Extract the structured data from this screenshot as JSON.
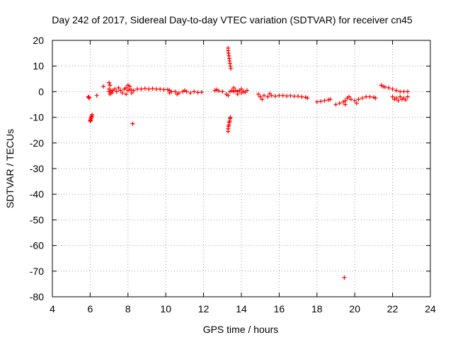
{
  "chart_data": {
    "type": "scatter",
    "title": "Day 242 of 2017, Sidereal Day-to-day VTEC variation (SDTVAR) for receiver cn45",
    "xlabel": "GPS time / hours",
    "ylabel": "SDTVAR / TECUs",
    "xlim": [
      4,
      24
    ],
    "ylim": [
      -80,
      20
    ],
    "xticks": [
      4,
      6,
      8,
      10,
      12,
      14,
      16,
      18,
      20,
      22,
      24
    ],
    "yticks": [
      -80,
      -70,
      -60,
      -50,
      -40,
      -30,
      -20,
      -10,
      0,
      10,
      20
    ],
    "xtick_labels": [
      "4",
      "6",
      "8",
      "10",
      "12",
      "14",
      "16",
      "18",
      "20",
      "22",
      "24"
    ],
    "ytick_labels": [
      "-80",
      "-70",
      "-60",
      "-50",
      "-40",
      "-30",
      "-20",
      "-10",
      "0",
      "10",
      "20"
    ],
    "grid": true,
    "marker": "+",
    "series_color": "#ff0000",
    "series": [
      {
        "name": "SDTVAR",
        "points": [
          [
            5.9,
            -2.0
          ],
          [
            5.95,
            -2.5
          ],
          [
            5.93,
            -2.2
          ],
          [
            6.0,
            -11.5
          ],
          [
            6.02,
            -11.0
          ],
          [
            6.04,
            -10.5
          ],
          [
            6.06,
            -10.0
          ],
          [
            6.08,
            -9.5
          ],
          [
            6.1,
            -9.0
          ],
          [
            6.03,
            -11.2
          ],
          [
            6.07,
            -9.8
          ],
          [
            6.35,
            -1.5
          ],
          [
            6.7,
            2.0
          ],
          [
            7.0,
            3.5
          ],
          [
            7.05,
            2.5
          ],
          [
            7.0,
            1.0
          ],
          [
            7.0,
            0.0
          ],
          [
            7.05,
            -1.0
          ],
          [
            7.1,
            0.5
          ],
          [
            7.15,
            -0.5
          ],
          [
            7.2,
            0.5
          ],
          [
            7.3,
            1.0
          ],
          [
            7.4,
            0.0
          ],
          [
            7.5,
            1.5
          ],
          [
            7.6,
            0.5
          ],
          [
            7.7,
            -0.5
          ],
          [
            7.8,
            1.0
          ],
          [
            7.9,
            1.5
          ],
          [
            8.0,
            0.5
          ],
          [
            8.1,
            1.0
          ],
          [
            8.2,
            0.5
          ],
          [
            8.0,
            2.5
          ],
          [
            8.1,
            2.0
          ],
          [
            7.9,
            -1.0
          ],
          [
            8.2,
            -0.5
          ],
          [
            8.3,
            0.5
          ],
          [
            8.5,
            1.0
          ],
          [
            8.7,
            1.0
          ],
          [
            8.9,
            1.2
          ],
          [
            9.1,
            1.0
          ],
          [
            9.3,
            1.2
          ],
          [
            9.5,
            1.0
          ],
          [
            9.7,
            1.0
          ],
          [
            9.9,
            0.8
          ],
          [
            10.1,
            0.8
          ],
          [
            10.2,
            0.5
          ],
          [
            8.25,
            -12.5
          ],
          [
            10.2,
            -0.5
          ],
          [
            10.3,
            0.0
          ],
          [
            10.5,
            0.0
          ],
          [
            10.7,
            -0.5
          ],
          [
            10.9,
            0.0
          ],
          [
            11.1,
            0.0
          ],
          [
            11.3,
            -0.5
          ],
          [
            11.5,
            0.0
          ],
          [
            11.7,
            -0.3
          ],
          [
            11.9,
            -0.2
          ],
          [
            10.6,
            -1.0
          ],
          [
            11.0,
            0.5
          ],
          [
            12.6,
            0.5
          ],
          [
            12.8,
            0.3
          ],
          [
            13.0,
            0.0
          ],
          [
            12.7,
            0.8
          ],
          [
            13.3,
            17.0
          ],
          [
            13.3,
            16.0
          ],
          [
            13.32,
            15.0
          ],
          [
            13.34,
            14.0
          ],
          [
            13.36,
            13.0
          ],
          [
            13.38,
            12.0
          ],
          [
            13.4,
            11.0
          ],
          [
            13.42,
            10.0
          ],
          [
            13.44,
            9.0
          ],
          [
            13.3,
            -15.5
          ],
          [
            13.3,
            -14.5
          ],
          [
            13.32,
            -13.5
          ],
          [
            13.34,
            -13.0
          ],
          [
            13.36,
            -12.0
          ],
          [
            13.38,
            -11.5
          ],
          [
            13.4,
            -10.5
          ],
          [
            13.42,
            -10.0
          ],
          [
            13.2,
            -1.0
          ],
          [
            13.3,
            -1.5
          ],
          [
            13.4,
            0.0
          ],
          [
            13.5,
            0.5
          ],
          [
            13.6,
            0.0
          ],
          [
            13.7,
            0.5
          ],
          [
            13.8,
            0.0
          ],
          [
            13.9,
            0.5
          ],
          [
            14.0,
            -0.5
          ],
          [
            14.1,
            0.0
          ],
          [
            14.2,
            -0.2
          ],
          [
            14.3,
            0.5
          ],
          [
            13.6,
            1.5
          ],
          [
            13.8,
            -1.0
          ],
          [
            14.0,
            1.0
          ],
          [
            14.9,
            -1.0
          ],
          [
            15.0,
            -2.0
          ],
          [
            15.2,
            -1.5
          ],
          [
            15.4,
            -2.0
          ],
          [
            15.6,
            -1.5
          ],
          [
            15.8,
            -1.8
          ],
          [
            16.0,
            -1.5
          ],
          [
            16.2,
            -1.5
          ],
          [
            16.4,
            -1.7
          ],
          [
            16.6,
            -1.6
          ],
          [
            16.8,
            -1.8
          ],
          [
            17.0,
            -1.8
          ],
          [
            17.2,
            -2.0
          ],
          [
            17.4,
            -2.2
          ],
          [
            17.5,
            -2.5
          ],
          [
            15.1,
            -3.0
          ],
          [
            15.5,
            -0.8
          ],
          [
            18.0,
            -4.0
          ],
          [
            18.2,
            -3.8
          ],
          [
            18.4,
            -3.5
          ],
          [
            18.6,
            -3.2
          ],
          [
            18.7,
            -3.0
          ],
          [
            19.0,
            -5.0
          ],
          [
            19.2,
            -4.5
          ],
          [
            19.4,
            -4.0
          ],
          [
            19.5,
            -3.5
          ],
          [
            19.6,
            -2.5
          ],
          [
            19.7,
            -2.0
          ],
          [
            19.8,
            -3.0
          ],
          [
            20.0,
            -3.5
          ],
          [
            20.2,
            -3.0
          ],
          [
            20.4,
            -2.5
          ],
          [
            20.6,
            -2.0
          ],
          [
            20.8,
            -2.0
          ],
          [
            21.0,
            -2.2
          ],
          [
            21.1,
            -2.5
          ],
          [
            19.5,
            -5.0
          ],
          [
            20.1,
            -4.5
          ],
          [
            19.45,
            -72.5
          ],
          [
            21.4,
            2.5
          ],
          [
            21.5,
            2.0
          ],
          [
            21.6,
            1.8
          ],
          [
            21.8,
            1.5
          ],
          [
            22.0,
            1.0
          ],
          [
            22.2,
            0.5
          ],
          [
            22.4,
            0.0
          ],
          [
            22.6,
            0.0
          ],
          [
            22.8,
            0.0
          ],
          [
            22.0,
            -2.0
          ],
          [
            22.1,
            -3.0
          ],
          [
            22.2,
            -2.5
          ],
          [
            22.3,
            -3.5
          ],
          [
            22.4,
            -2.0
          ],
          [
            22.5,
            -3.0
          ],
          [
            22.6,
            -2.5
          ],
          [
            22.7,
            -3.2
          ],
          [
            22.8,
            -2.0
          ]
        ]
      }
    ]
  }
}
